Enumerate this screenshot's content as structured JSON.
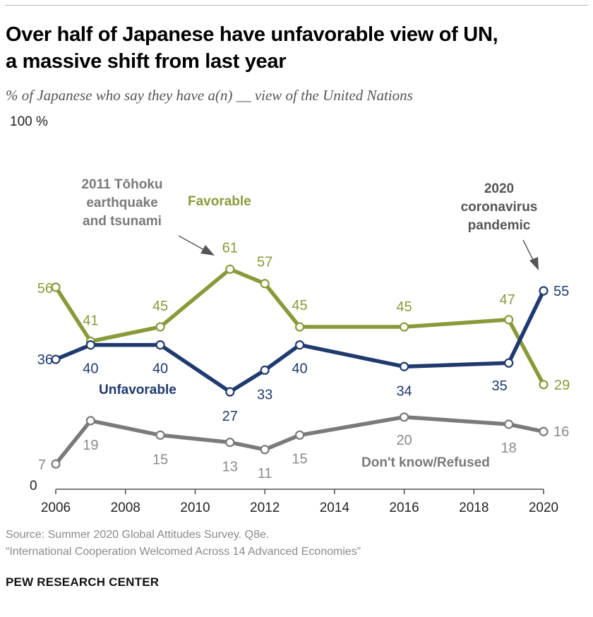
{
  "header": {
    "title_line1": "Over half of Japanese have unfavorable view of UN,",
    "title_line2": "a massive shift from last year",
    "subtitle": "% of Japanese who say they have a(n) __ view of the United Nations"
  },
  "footer": {
    "source": "Source: Summer 2020 Global Attitudes Survey. Q8e.",
    "report": "“International Cooperation Welcomed Across 14 Advanced Economies”",
    "brand": "PEW RESEARCH CENTER"
  },
  "chart_data": {
    "type": "line",
    "x": [
      2006,
      2007,
      2009,
      2011,
      2012,
      2013,
      2016,
      2019,
      2020
    ],
    "x_ticks": [
      2006,
      2008,
      2010,
      2012,
      2014,
      2016,
      2018,
      2020
    ],
    "x_tick_labels": [
      "2006",
      "2008",
      "2010",
      "2012",
      "2014",
      "2016",
      "2018",
      "2020"
    ],
    "xlim": [
      2006,
      2020
    ],
    "ylim": [
      0,
      100
    ],
    "y_top_label": "100 %",
    "y_bottom_label": "0",
    "grid": false,
    "series": [
      {
        "name": "Favorable",
        "color": "#8a9a3a",
        "values": [
          56,
          41,
          45,
          61,
          57,
          45,
          45,
          47,
          29
        ],
        "labels": [
          "56",
          "41",
          "45",
          "61",
          "57",
          "45",
          "45",
          "47",
          "29"
        ]
      },
      {
        "name": "Unfavorable",
        "color": "#1f3a6e",
        "values": [
          36,
          40,
          40,
          27,
          33,
          40,
          34,
          35,
          55
        ],
        "labels": [
          "36",
          "40",
          "40",
          "27",
          "33",
          "40",
          "34",
          "35",
          "55"
        ]
      },
      {
        "name": "Don't know/Refused",
        "color": "#7a7a7a",
        "label_color": "#8a8a8a",
        "values": [
          7,
          19,
          15,
          13,
          11,
          15,
          20,
          18,
          16
        ],
        "labels": [
          "7",
          "19",
          "15",
          "13",
          "11",
          "15",
          "20",
          "18",
          "16"
        ]
      }
    ],
    "annotations": [
      {
        "id": "tohoku",
        "lines": [
          "2011 Tōhoku",
          "earthquake",
          "and tsunami"
        ],
        "color": "#7a7a7a"
      },
      {
        "id": "covid",
        "lines": [
          "2020",
          "coronavirus",
          "pandemic"
        ],
        "color": "#555555"
      }
    ]
  }
}
